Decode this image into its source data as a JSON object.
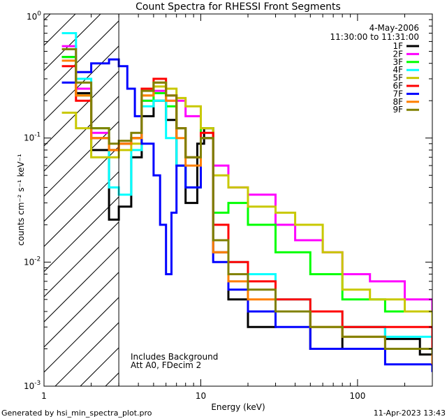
{
  "chart_data": {
    "type": "line",
    "title": "Count Spectra for RHESSI Front Segments",
    "xlabel": "Energy (keV)",
    "ylabel": "counts cm⁻² s⁻¹ keV⁻¹",
    "xscale": "log",
    "yscale": "log",
    "xlim": [
      1,
      300
    ],
    "ylim": [
      0.001,
      1
    ],
    "x_ticks": [
      {
        "value": 1,
        "label": "1"
      },
      {
        "value": 10,
        "label": "10"
      },
      {
        "value": 100,
        "label": "100"
      }
    ],
    "y_ticks": [
      {
        "value": 1,
        "base": "10",
        "exp": "0"
      },
      {
        "value": 0.1,
        "base": "10",
        "exp": "-1"
      },
      {
        "value": 0.01,
        "base": "10",
        "exp": "-2"
      },
      {
        "value": 0.001,
        "base": "10",
        "exp": "-3"
      }
    ],
    "threshold_energy_kev": 3,
    "date": "4-May-2006",
    "time_range": "11:30:00 to 11:31:00",
    "annotations": [
      "Includes Background",
      "Att A0, FDecim 2"
    ],
    "series": [
      {
        "name": "1F",
        "color": "#000000",
        "values": [
          [
            1.3,
            0.45
          ],
          [
            1.6,
            0.23
          ],
          [
            2.0,
            0.08
          ],
          [
            2.6,
            0.022
          ],
          [
            3.0,
            0.028
          ],
          [
            3.6,
            0.07
          ],
          [
            4.2,
            0.15
          ],
          [
            5.0,
            0.2
          ],
          [
            6.0,
            0.14
          ],
          [
            7.0,
            0.06
          ],
          [
            8.0,
            0.03
          ],
          [
            9.5,
            0.09
          ],
          [
            10.5,
            0.12
          ],
          [
            12,
            0.012
          ],
          [
            15,
            0.005
          ],
          [
            20,
            0.003
          ],
          [
            30,
            0.004
          ],
          [
            50,
            0.002
          ],
          [
            80,
            0.003
          ],
          [
            150,
            0.0024
          ],
          [
            250,
            0.0018
          ],
          [
            300,
            0.002
          ]
        ]
      },
      {
        "name": "2F",
        "color": "#ff00ff",
        "values": [
          [
            1.3,
            0.55
          ],
          [
            1.6,
            0.25
          ],
          [
            2.0,
            0.11
          ],
          [
            2.6,
            0.08
          ],
          [
            3.0,
            0.09
          ],
          [
            3.6,
            0.1
          ],
          [
            4.2,
            0.2
          ],
          [
            5.0,
            0.24
          ],
          [
            6.0,
            0.2
          ],
          [
            7.0,
            0.2
          ],
          [
            8.0,
            0.15
          ],
          [
            10,
            0.12
          ],
          [
            12,
            0.06
          ],
          [
            15,
            0.04
          ],
          [
            20,
            0.035
          ],
          [
            30,
            0.02
          ],
          [
            40,
            0.015
          ],
          [
            60,
            0.012
          ],
          [
            80,
            0.008
          ],
          [
            120,
            0.007
          ],
          [
            200,
            0.005
          ],
          [
            300,
            0.003
          ]
        ]
      },
      {
        "name": "3F",
        "color": "#00ff00",
        "values": [
          [
            1.3,
            0.45
          ],
          [
            1.6,
            0.22
          ],
          [
            2.0,
            0.12
          ],
          [
            2.6,
            0.08
          ],
          [
            3.0,
            0.09
          ],
          [
            3.6,
            0.1
          ],
          [
            4.2,
            0.2
          ],
          [
            5.0,
            0.23
          ],
          [
            6.0,
            0.18
          ],
          [
            7.0,
            0.12
          ],
          [
            8.0,
            0.07
          ],
          [
            10,
            0.12
          ],
          [
            12,
            0.025
          ],
          [
            15,
            0.03
          ],
          [
            20,
            0.02
          ],
          [
            30,
            0.012
          ],
          [
            50,
            0.008
          ],
          [
            80,
            0.005
          ],
          [
            150,
            0.004
          ],
          [
            300,
            0.002
          ]
        ]
      },
      {
        "name": "4F",
        "color": "#00ffff",
        "values": [
          [
            1.3,
            0.7
          ],
          [
            1.6,
            0.3
          ],
          [
            2.0,
            0.1
          ],
          [
            2.6,
            0.04
          ],
          [
            3.0,
            0.035
          ],
          [
            3.6,
            0.08
          ],
          [
            4.2,
            0.18
          ],
          [
            5.0,
            0.2
          ],
          [
            6.0,
            0.1
          ],
          [
            7.0,
            0.06
          ],
          [
            8.0,
            0.04
          ],
          [
            10,
            0.1
          ],
          [
            12,
            0.015
          ],
          [
            15,
            0.01
          ],
          [
            20,
            0.008
          ],
          [
            30,
            0.005
          ],
          [
            50,
            0.004
          ],
          [
            80,
            0.003
          ],
          [
            150,
            0.0025
          ],
          [
            300,
            0.002
          ]
        ]
      },
      {
        "name": "5F",
        "color": "#c8c800",
        "values": [
          [
            1.3,
            0.16
          ],
          [
            1.6,
            0.12
          ],
          [
            2.0,
            0.07
          ],
          [
            2.6,
            0.07
          ],
          [
            3.0,
            0.08
          ],
          [
            3.6,
            0.09
          ],
          [
            4.2,
            0.22
          ],
          [
            5.0,
            0.26
          ],
          [
            6.0,
            0.25
          ],
          [
            7.0,
            0.21
          ],
          [
            8.0,
            0.18
          ],
          [
            10,
            0.12
          ],
          [
            12,
            0.05
          ],
          [
            15,
            0.04
          ],
          [
            20,
            0.028
          ],
          [
            30,
            0.025
          ],
          [
            40,
            0.02
          ],
          [
            60,
            0.012
          ],
          [
            80,
            0.006
          ],
          [
            120,
            0.005
          ],
          [
            200,
            0.004
          ],
          [
            300,
            0.003
          ]
        ]
      },
      {
        "name": "6F",
        "color": "#ff0000",
        "values": [
          [
            1.3,
            0.38
          ],
          [
            1.6,
            0.2
          ],
          [
            2.0,
            0.1
          ],
          [
            2.6,
            0.08
          ],
          [
            3.0,
            0.09
          ],
          [
            3.6,
            0.1
          ],
          [
            4.2,
            0.25
          ],
          [
            5.0,
            0.3
          ],
          [
            6.0,
            0.22
          ],
          [
            7.0,
            0.12
          ],
          [
            8.0,
            0.07
          ],
          [
            10,
            0.11
          ],
          [
            12,
            0.02
          ],
          [
            15,
            0.01
          ],
          [
            20,
            0.007
          ],
          [
            30,
            0.005
          ],
          [
            50,
            0.004
          ],
          [
            80,
            0.003
          ],
          [
            150,
            0.003
          ],
          [
            300,
            0.002
          ]
        ]
      },
      {
        "name": "7F",
        "color": "#0000ff",
        "values": [
          [
            1.3,
            0.28
          ],
          [
            1.6,
            0.34
          ],
          [
            2.0,
            0.4
          ],
          [
            2.6,
            0.43
          ],
          [
            3.0,
            0.38
          ],
          [
            3.4,
            0.25
          ],
          [
            3.8,
            0.15
          ],
          [
            4.2,
            0.09
          ],
          [
            5.0,
            0.05
          ],
          [
            5.5,
            0.02
          ],
          [
            6.0,
            0.008
          ],
          [
            6.5,
            0.025
          ],
          [
            7.0,
            0.06
          ],
          [
            8.0,
            0.04
          ],
          [
            10,
            0.1
          ],
          [
            12,
            0.01
          ],
          [
            15,
            0.006
          ],
          [
            20,
            0.004
          ],
          [
            30,
            0.003
          ],
          [
            50,
            0.002
          ],
          [
            80,
            0.002
          ],
          [
            150,
            0.0015
          ],
          [
            300,
            0.0013
          ]
        ]
      },
      {
        "name": "8F",
        "color": "#ff7f00",
        "values": [
          [
            1.3,
            0.42
          ],
          [
            1.6,
            0.22
          ],
          [
            2.0,
            0.1
          ],
          [
            2.6,
            0.08
          ],
          [
            3.0,
            0.09
          ],
          [
            3.6,
            0.1
          ],
          [
            4.2,
            0.22
          ],
          [
            5.0,
            0.28
          ],
          [
            6.0,
            0.2
          ],
          [
            7.0,
            0.1
          ],
          [
            8.0,
            0.06
          ],
          [
            10,
            0.1
          ],
          [
            12,
            0.012
          ],
          [
            15,
            0.007
          ],
          [
            20,
            0.005
          ],
          [
            30,
            0.004
          ],
          [
            50,
            0.003
          ],
          [
            80,
            0.0025
          ],
          [
            150,
            0.002
          ],
          [
            300,
            0.0015
          ]
        ]
      },
      {
        "name": "9F",
        "color": "#808000",
        "values": [
          [
            1.3,
            0.52
          ],
          [
            1.6,
            0.28
          ],
          [
            2.0,
            0.12
          ],
          [
            2.6,
            0.09
          ],
          [
            3.0,
            0.095
          ],
          [
            3.6,
            0.11
          ],
          [
            4.2,
            0.24
          ],
          [
            5.0,
            0.28
          ],
          [
            6.0,
            0.22
          ],
          [
            7.0,
            0.12
          ],
          [
            8.0,
            0.07
          ],
          [
            10,
            0.1
          ],
          [
            12,
            0.015
          ],
          [
            15,
            0.008
          ],
          [
            20,
            0.006
          ],
          [
            30,
            0.004
          ],
          [
            50,
            0.003
          ],
          [
            80,
            0.0025
          ],
          [
            150,
            0.002
          ],
          [
            300,
            0.0018
          ]
        ]
      }
    ]
  },
  "footer": {
    "left": "Generated by hsi_min_spectra_plot.pro",
    "right": "11-Apr-2023 13:43"
  }
}
